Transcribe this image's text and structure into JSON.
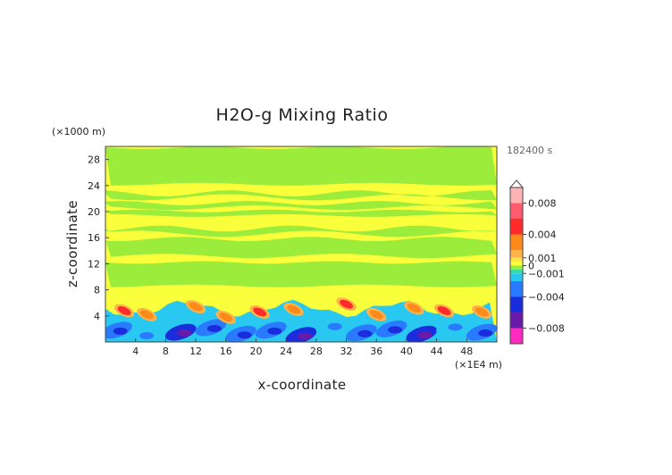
{
  "chart_data": {
    "type": "heatmap",
    "title": "H2O-g Mixing Ratio",
    "xlabel": "x-coordinate",
    "ylabel": "z-coordinate",
    "x_unit": "(×1E4 m)",
    "y_unit": "(×1000 m)",
    "time_label": "182400 s",
    "xlim": [
      0,
      52
    ],
    "ylim": [
      0,
      30
    ],
    "x_ticks": [
      4,
      8,
      12,
      16,
      20,
      24,
      28,
      32,
      36,
      40,
      44,
      48
    ],
    "y_ticks": [
      4,
      8,
      12,
      16,
      20,
      24,
      28
    ],
    "grid": false,
    "legend_position": "right",
    "colorbar": {
      "labels": [
        {
          "value": 0.008,
          "text": "0.008"
        },
        {
          "value": 0.004,
          "text": "0.004"
        },
        {
          "value": 0.001,
          "text": "0.001"
        },
        {
          "value": 0,
          "text": "0"
        },
        {
          "value": -0.001,
          "text": "−0.001"
        },
        {
          "value": -0.004,
          "text": "−0.004"
        },
        {
          "value": -0.008,
          "text": "−0.008"
        }
      ],
      "segments": [
        {
          "from": 0.008,
          "to": 0.01,
          "color": "#ffb3b3"
        },
        {
          "from": 0.006,
          "to": 0.008,
          "color": "#ff5c6e"
        },
        {
          "from": 0.004,
          "to": 0.006,
          "color": "#ff2a2a"
        },
        {
          "from": 0.002,
          "to": 0.004,
          "color": "#ff8a1c"
        },
        {
          "from": 0.001,
          "to": 0.002,
          "color": "#ffb24a"
        },
        {
          "from": 0.0005,
          "to": 0.001,
          "color": "#ffe640"
        },
        {
          "from": 0,
          "to": 0.0005,
          "color": "#f9ff3a"
        },
        {
          "from": -0.0005,
          "to": 0,
          "color": "#9bec3b"
        },
        {
          "from": -0.001,
          "to": -0.0005,
          "color": "#33e0a0"
        },
        {
          "from": -0.002,
          "to": -0.001,
          "color": "#28c8f0"
        },
        {
          "from": -0.004,
          "to": -0.002,
          "color": "#2a7aff"
        },
        {
          "from": -0.006,
          "to": -0.004,
          "color": "#1a2cdc"
        },
        {
          "from": -0.008,
          "to": -0.006,
          "color": "#6a1aa8"
        },
        {
          "from": -0.01,
          "to": -0.008,
          "color": "#ff2ac0"
        }
      ]
    },
    "field": {
      "background_value": 0.0003,
      "bands": [
        {
          "z_from": 8.6,
          "z_to": 12.2,
          "value": -0.0002
        },
        {
          "z_from": 13.2,
          "z_to": 15.8,
          "value": -0.0002
        },
        {
          "z_from": 16.6,
          "z_to": 17.4,
          "value": -0.0002
        },
        {
          "z_from": 19.4,
          "z_to": 20.1,
          "value": -0.0002
        },
        {
          "z_from": 20.6,
          "z_to": 21.3,
          "value": -0.0002
        },
        {
          "z_from": 22.2,
          "z_to": 22.8,
          "value": -0.0002
        },
        {
          "z_from": 24.2,
          "z_to": 29.8,
          "value": -0.0002
        }
      ],
      "plumes_dry": [
        {
          "x": 1.5,
          "z": 1.8,
          "value": -0.003
        },
        {
          "x": 5.0,
          "z": 1.1,
          "value": -0.002
        },
        {
          "x": 10.0,
          "z": 1.5,
          "value": -0.005
        },
        {
          "x": 14.0,
          "z": 2.2,
          "value": -0.003
        },
        {
          "x": 18.0,
          "z": 1.2,
          "value": -0.004
        },
        {
          "x": 22.0,
          "z": 1.8,
          "value": -0.003
        },
        {
          "x": 26.0,
          "z": 1.0,
          "value": -0.005
        },
        {
          "x": 30.0,
          "z": 2.5,
          "value": -0.002
        },
        {
          "x": 34.0,
          "z": 1.4,
          "value": -0.004
        },
        {
          "x": 38.0,
          "z": 2.0,
          "value": -0.003
        },
        {
          "x": 42.0,
          "z": 1.2,
          "value": -0.005
        },
        {
          "x": 46.0,
          "z": 2.4,
          "value": -0.002
        },
        {
          "x": 50.0,
          "z": 1.5,
          "value": -0.003
        }
      ],
      "plumes_moist": [
        {
          "x": 2.5,
          "z": 4.8,
          "value": 0.004
        },
        {
          "x": 5.5,
          "z": 4.2,
          "value": 0.003
        },
        {
          "x": 12.0,
          "z": 5.4,
          "value": 0.003
        },
        {
          "x": 16.0,
          "z": 3.8,
          "value": 0.003
        },
        {
          "x": 20.5,
          "z": 4.6,
          "value": 0.004
        },
        {
          "x": 25.0,
          "z": 5.0,
          "value": 0.003
        },
        {
          "x": 32.0,
          "z": 5.8,
          "value": 0.004
        },
        {
          "x": 36.0,
          "z": 4.2,
          "value": 0.003
        },
        {
          "x": 41.0,
          "z": 5.2,
          "value": 0.003
        },
        {
          "x": 45.0,
          "z": 4.8,
          "value": 0.004
        },
        {
          "x": 50.0,
          "z": 4.6,
          "value": 0.003
        }
      ]
    }
  }
}
